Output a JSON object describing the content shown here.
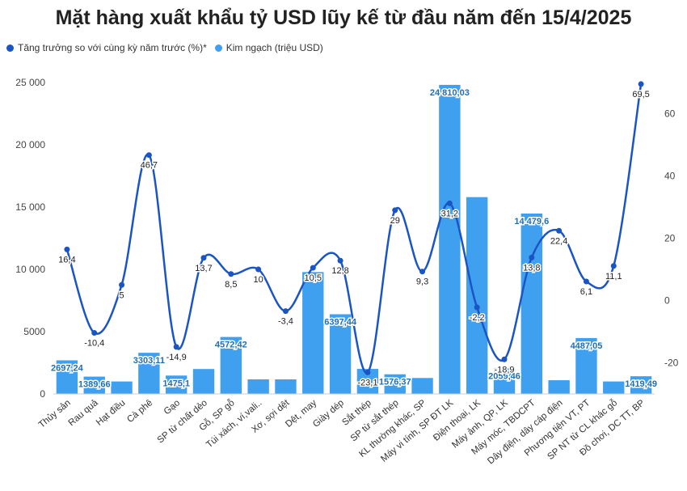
{
  "chart_data": {
    "type": "bar+line",
    "title": "Mặt hàng xuất khẩu tỷ USD lũy kế từ đầu năm đến 15/4/2025",
    "legend_position": "top-left",
    "categories": [
      "Thủy sản",
      "Rau quả",
      "Hạt điều",
      "Cà phê",
      "Gạo",
      "SP từ chất dẻo",
      "Gỗ, SP gỗ",
      "Túi xách, ví,vali..",
      "Xơ, sợi dệt",
      "Dệt, may",
      "Giày dép",
      "Sắt thép",
      "SP từ sắt thép",
      "KL thường khác, SP",
      "Máy vi tính, SP ĐT LK",
      "Điện thoại, LK",
      "Máy ảnh, QP, LK",
      "Máy móc, TBDCPT",
      "Dây điện, dây cáp điện",
      "Phương tiện VT, PT",
      "SP NT từ CL khác gỗ",
      "Đồ chơi, DC TT, BP"
    ],
    "series": [
      {
        "name": "Tăng trưởng so với cùng kỳ năm trước (%)*",
        "type": "line",
        "axis": "right",
        "color": "#1b55c4",
        "values": [
          16.4,
          -10.4,
          5,
          46.7,
          -14.9,
          13.7,
          8.5,
          10,
          -3.4,
          10.5,
          12.8,
          -23.1,
          29,
          9.3,
          31.2,
          -2.2,
          -18.9,
          13.8,
          22.4,
          6.1,
          11.1,
          69.5
        ],
        "labels": [
          "16,4",
          "-10,4",
          "5",
          "46,7",
          "-14,9",
          "13,7",
          "8,5",
          "10",
          "-3,4",
          "10,5",
          "12,8",
          "-23,1",
          "29",
          "9,3",
          "31,2",
          "-2,2",
          "-18,9",
          "13,8",
          "22,4",
          "6,1",
          "11,1",
          "69,5"
        ]
      },
      {
        "name": "Kim ngạch (triệu USD)",
        "type": "bar",
        "axis": "left",
        "color": "#3fa0ef",
        "values": [
          2697.24,
          1389.66,
          1000,
          3303.11,
          1475.1,
          2000,
          4572.42,
          1170,
          1170,
          9780,
          6397.44,
          2010,
          1576.37,
          1280,
          24810.03,
          15800,
          2059.46,
          14479.6,
          1100,
          4487.05,
          1000,
          1419.49
        ],
        "labels": [
          "2697,24",
          "1389,66",
          "",
          "3303,11",
          "1475,1",
          "",
          "4572,42",
          "",
          "",
          "",
          "6397,44",
          "",
          "1576,37",
          "",
          "24 810,03",
          "",
          "2059,46",
          "14 479,6",
          "",
          "4487,05",
          "",
          "1419,49"
        ]
      }
    ],
    "y_left": {
      "min": 0,
      "max": 25000,
      "ticks": [
        0,
        5000,
        10000,
        15000,
        20000,
        25000
      ],
      "tick_labels": [
        "0",
        "5000",
        "10 000",
        "15 000",
        "20 000",
        "25 000"
      ]
    },
    "y_right": {
      "min": -30,
      "max": 70,
      "ticks": [
        -20,
        0,
        20,
        40,
        60
      ],
      "tick_labels": [
        "-20",
        "0",
        "20",
        "40",
        "60"
      ]
    },
    "grid": false
  }
}
